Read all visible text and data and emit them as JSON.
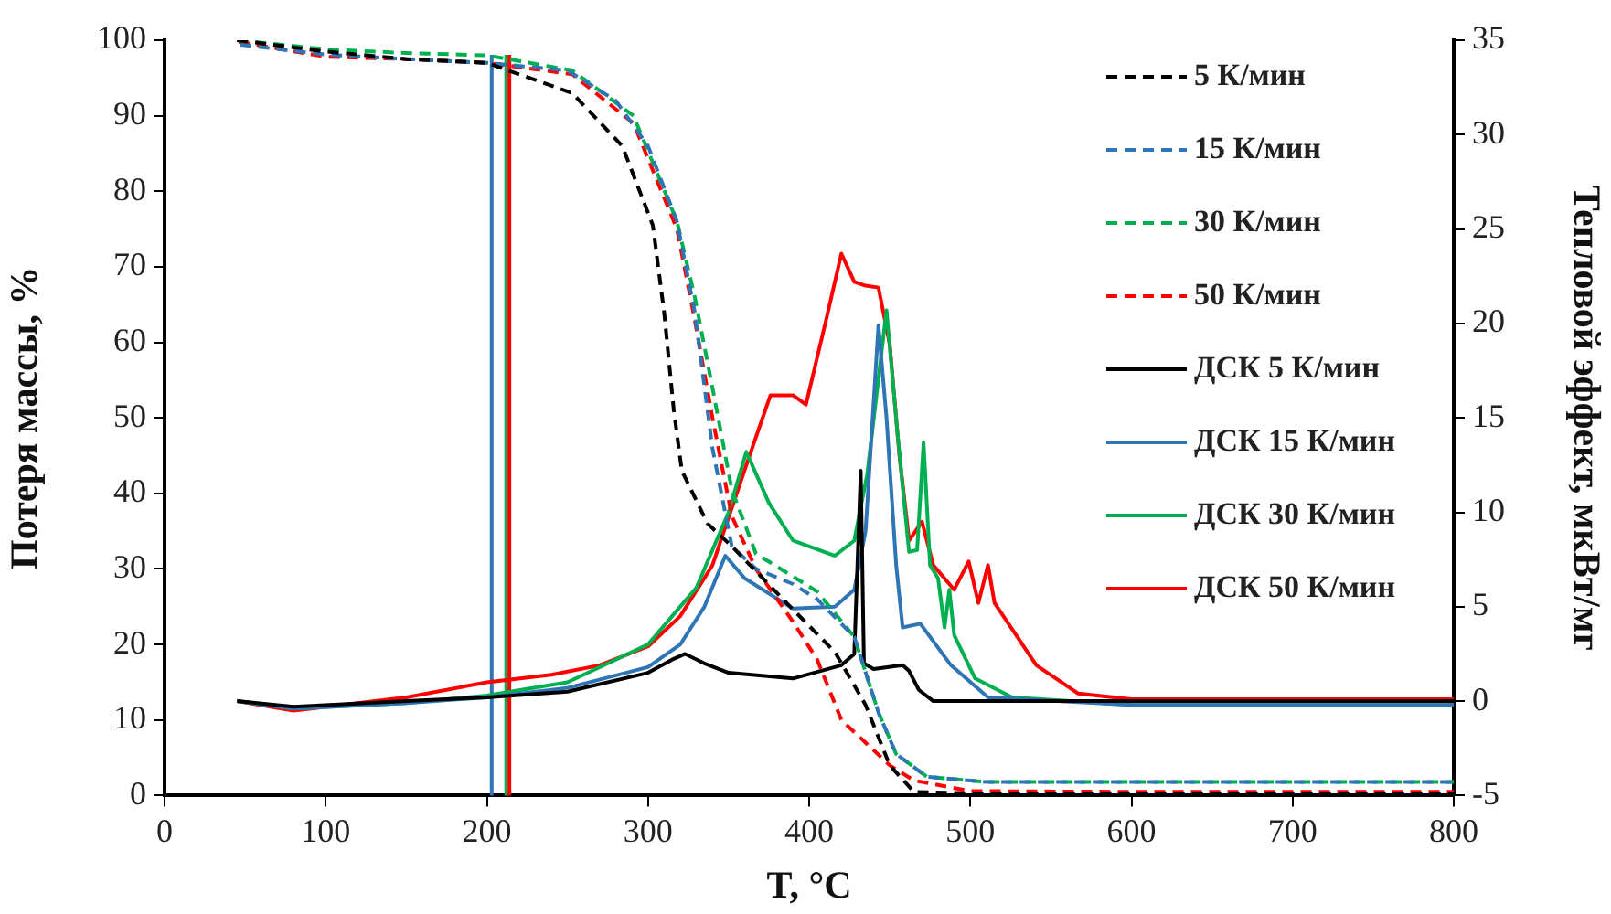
{
  "chart_data": {
    "type": "line",
    "xlabel": "T, °C",
    "ylabel": "Потеря массы, %",
    "y2label": "Тепловой эффект, мкВт/мг",
    "xlim": [
      0,
      800
    ],
    "xticks": [
      0,
      100,
      200,
      300,
      400,
      500,
      600,
      700,
      800
    ],
    "ylim": [
      0,
      100
    ],
    "yticks": [
      0,
      10,
      20,
      30,
      40,
      50,
      60,
      70,
      80,
      90,
      100
    ],
    "y2lim": [
      -5,
      35
    ],
    "y2ticks": [
      -5,
      0,
      5,
      10,
      15,
      20,
      25,
      30,
      35
    ],
    "grid": false,
    "legend": "top right",
    "marker": "none",
    "ref_lines": [
      {
        "axis": "x",
        "value": 203,
        "color": "#2e75b6"
      },
      {
        "axis": "x",
        "value": 212,
        "color": "#00b050"
      },
      {
        "axis": "x",
        "value": 214,
        "color": "#ff0000"
      }
    ],
    "series": [
      {
        "name": "5 К/мин",
        "color": "#000000",
        "line_style": "dashed",
        "x": [
          45,
          100,
          150,
          200,
          253,
          284,
          303,
          310,
          316,
          321,
          337,
          352,
          386,
          416,
          435,
          450,
          465,
          500,
          600,
          700,
          800
        ],
        "values": [
          100,
          98.5,
          97.5,
          97,
          93,
          86,
          75.5,
          64,
          51,
          43,
          36,
          33,
          25.5,
          19,
          12,
          4,
          0.5,
          0.3,
          0.3,
          0.3,
          0.3
        ]
      },
      {
        "name": "15 К/мин",
        "color": "#2e75b6",
        "line_style": "dashed",
        "x": [
          47,
          100,
          150,
          200,
          250,
          280,
          300,
          318,
          329,
          340,
          352,
          367,
          390,
          405,
          428,
          443,
          454,
          473,
          510,
          600,
          700,
          800
        ],
        "values": [
          99.4,
          98.1,
          97.5,
          97,
          96,
          92,
          86,
          76,
          64,
          46,
          33,
          30,
          28,
          26,
          21,
          11,
          5.5,
          2.5,
          1.8,
          1.8,
          1.8,
          1.8
        ]
      },
      {
        "name": "30 К/мин",
        "color": "#00b050",
        "line_style": "dashed",
        "x": [
          45,
          100,
          150,
          200,
          253,
          291,
          318,
          329,
          340,
          352,
          367,
          390,
          405,
          428,
          443,
          454,
          473,
          510,
          600,
          700,
          800
        ],
        "values": [
          100,
          98.8,
          98.3,
          98,
          96,
          90,
          76,
          66,
          54,
          40.5,
          32,
          29,
          27,
          21,
          11,
          5.5,
          2.5,
          1.8,
          1.8,
          1.8,
          1.8
        ]
      },
      {
        "name": "50 К/мин",
        "color": "#ff0000",
        "line_style": "dashed",
        "x": [
          46,
          100,
          150,
          200,
          253,
          291,
          318,
          329,
          340,
          352,
          367,
          390,
          405,
          420,
          435,
          450,
          465,
          500,
          600,
          700,
          800
        ],
        "values": [
          99.8,
          97.8,
          97.5,
          97,
          95.5,
          89,
          75,
          63,
          50,
          37,
          30,
          23,
          18,
          10,
          7,
          4,
          2,
          0.6,
          0.5,
          0.5,
          0.5
        ]
      },
      {
        "name": "ДСК 5 К/мин",
        "color": "#000000",
        "line_style": "solid",
        "axis": "y2",
        "x": [
          45,
          80,
          150,
          200,
          250,
          300,
          315,
          323,
          335,
          350,
          390,
          420,
          428,
          432,
          434,
          440,
          458,
          462,
          468,
          477,
          600,
          800
        ],
        "values": [
          0,
          -0.3,
          0,
          0.2,
          0.5,
          1.5,
          2.2,
          2.5,
          2,
          1.5,
          1.2,
          1.9,
          2.5,
          12.2,
          2,
          1.7,
          1.9,
          1.6,
          0.6,
          0,
          0,
          0
        ]
      },
      {
        "name": "ДСК 15 К/мин",
        "color": "#2e75b6",
        "line_style": "solid",
        "axis": "y2",
        "x": [
          45,
          80,
          150,
          200,
          250,
          300,
          320,
          335,
          348,
          360,
          390,
          416,
          428,
          435,
          443,
          448,
          454,
          458,
          469,
          488,
          511,
          600,
          800
        ],
        "values": [
          0,
          -0.4,
          -0.1,
          0.2,
          0.7,
          1.8,
          3,
          5,
          7.7,
          6.5,
          4.9,
          5,
          5.9,
          9,
          19.9,
          15,
          7.2,
          3.9,
          4.1,
          1.9,
          0.2,
          -0.2,
          -0.2
        ]
      },
      {
        "name": "ДСК 30 К/мин",
        "color": "#00b050",
        "line_style": "solid",
        "axis": "y2",
        "x": [
          45,
          80,
          150,
          200,
          250,
          300,
          330,
          350,
          361,
          375,
          390,
          416,
          428,
          436,
          448,
          455,
          462,
          467,
          471,
          475,
          480,
          484,
          487,
          490,
          503,
          526,
          600,
          800
        ],
        "values": [
          0,
          -0.4,
          -0.1,
          0.3,
          1,
          3,
          6,
          10,
          13.2,
          10.5,
          8.5,
          7.7,
          8.5,
          12,
          20.7,
          14,
          7.9,
          8,
          13.7,
          7.2,
          6.5,
          3.9,
          5.9,
          3.5,
          1.2,
          0.2,
          -0.2,
          -0.2
        ]
      },
      {
        "name": "ДСК 50 К/мин",
        "color": "#ff0000",
        "line_style": "solid",
        "axis": "y2",
        "x": [
          45,
          80,
          150,
          200,
          240,
          270,
          300,
          320,
          340,
          361,
          376,
          390,
          398,
          410,
          420,
          428,
          435,
          443,
          450,
          456,
          462,
          470,
          477,
          490,
          499,
          505,
          511,
          515,
          541,
          567,
          600,
          800
        ],
        "values": [
          0,
          -0.5,
          0.2,
          1,
          1.4,
          1.9,
          2.9,
          4.5,
          7.2,
          12.5,
          16.2,
          16.2,
          15.7,
          20,
          23.7,
          22.2,
          22,
          21.9,
          18.9,
          13,
          8.5,
          9.5,
          7.2,
          5.9,
          7.4,
          5.2,
          7.2,
          5.2,
          1.9,
          0.4,
          0.1,
          0.1
        ]
      }
    ]
  }
}
